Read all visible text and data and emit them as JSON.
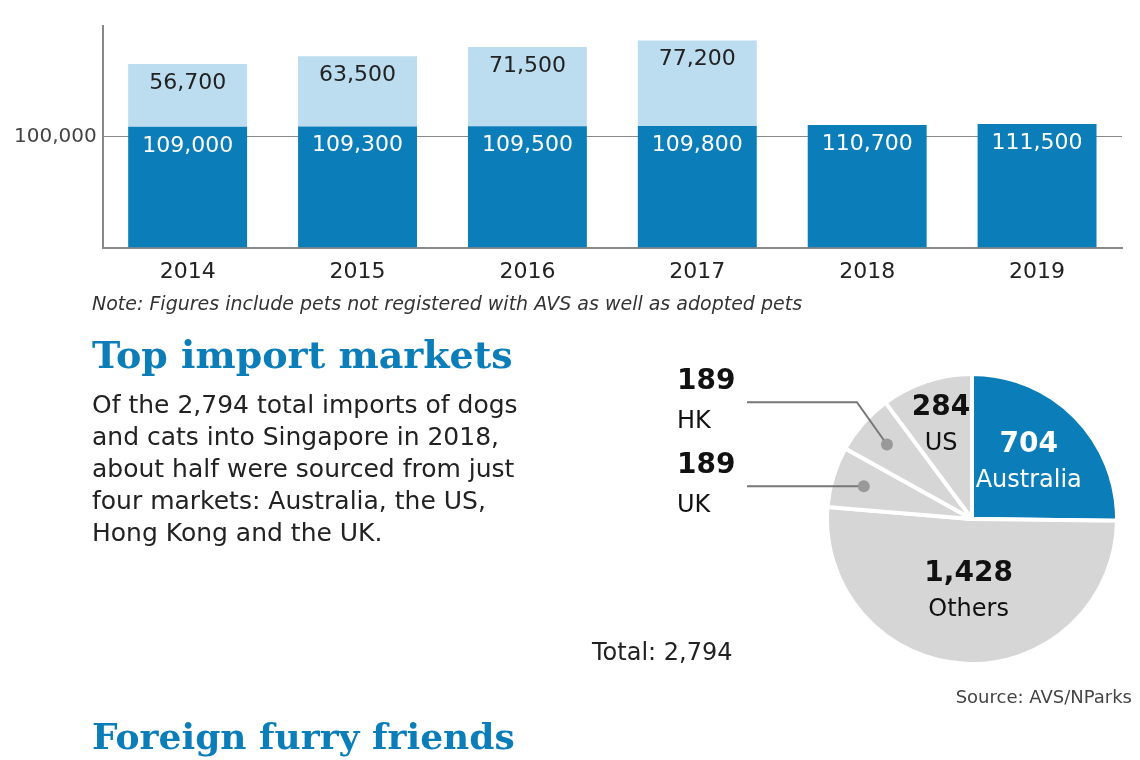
{
  "chart_data": [
    {
      "type": "bar",
      "stacked": true,
      "categories": [
        "2014",
        "2015",
        "2016",
        "2017",
        "2018",
        "2019"
      ],
      "series": [
        {
          "color": "#0b7db8",
          "values": [
            109000,
            109300,
            109500,
            109800,
            110700,
            111500
          ],
          "value_labels": [
            "109,000",
            "109,300",
            "109,500",
            "109,800",
            "110,700",
            "111,500"
          ]
        },
        {
          "color": "#bcdcef",
          "values": [
            56700,
            63500,
            71500,
            77200,
            null,
            null
          ],
          "value_labels": [
            "56,700",
            "63,500",
            "71,500",
            "77,200",
            null,
            null
          ]
        }
      ],
      "ylim": [
        0,
        200000
      ],
      "yticks": [
        {
          "value": 100000,
          "label": "100,000"
        }
      ],
      "grid": "y",
      "annotations": [
        "Note: Figures include pets not registered with AVS as well as adopted pets"
      ]
    },
    {
      "type": "pie",
      "title": "Top import markets",
      "subtitle": "Of the 2,794 total imports of dogs and cats into Singapore in 2018, about half were sourced from just four markets: Australia, the US, Hong Kong and the UK.",
      "categories": [
        "Australia",
        "Others",
        "UK",
        "HK",
        "US"
      ],
      "values": [
        704,
        1428,
        189,
        189,
        284
      ],
      "value_labels": [
        "704",
        "1,428",
        "189",
        "189",
        "284"
      ],
      "colors": [
        "#0b7db8",
        "#d6d6d6",
        "#d6d6d6",
        "#d6d6d6",
        "#d6d6d6"
      ],
      "annotations": [
        "Total: 2,794",
        "Source: AVS/NParks",
        "Foreign furry friends"
      ]
    }
  ]
}
